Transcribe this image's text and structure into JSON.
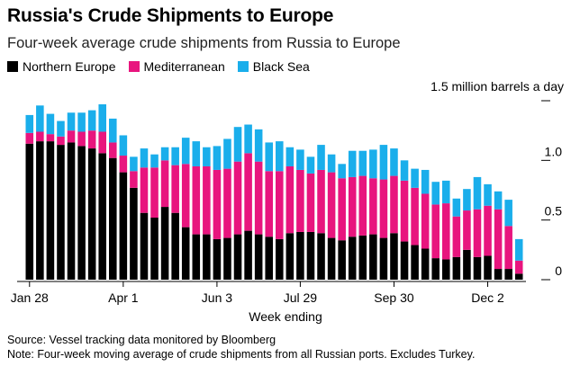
{
  "title": "Russia's Crude Shipments to Europe",
  "subtitle": "Four-week average crude shipments from Russia to Europe",
  "unit_label": "1.5 million barrels a day",
  "x_axis_title": "Week ending",
  "source": "Source: Vessel tracking data monitored by Bloomberg",
  "note": "Note: Four-week moving average of crude shipments from all Russian ports. Excludes Turkey.",
  "colors": {
    "northern_europe": "#000000",
    "mediterranean": "#e8157e",
    "black_sea": "#1aaeeb"
  },
  "chart_data": {
    "type": "bar",
    "stacked": true,
    "xlabel": "Week ending",
    "ylabel": "1.5 million barrels a day",
    "ylim": [
      0,
      1.5
    ],
    "y_ticks": [
      {
        "value": 0,
        "label": "0"
      },
      {
        "value": 0.5,
        "label": "0.5"
      },
      {
        "value": 1.0,
        "label": "1.0"
      },
      {
        "value": 1.5,
        "label": "1.5 million barrels a day"
      }
    ],
    "x_tick_labels": [
      {
        "index": 0,
        "label": "Jan 28"
      },
      {
        "index": 9,
        "label": "Apr 1"
      },
      {
        "index": 18,
        "label": "Jun 3"
      },
      {
        "index": 26,
        "label": "Jul 29"
      },
      {
        "index": 35,
        "label": "Sep 30"
      },
      {
        "index": 44,
        "label": "Dec 2"
      }
    ],
    "grid": false,
    "legend_position": "top-left",
    "series": [
      {
        "name": "Northern Europe",
        "color": "#000000",
        "values": [
          1.14,
          1.16,
          1.16,
          1.13,
          1.15,
          1.12,
          1.1,
          1.06,
          1.02,
          0.9,
          0.77,
          0.56,
          0.52,
          0.61,
          0.56,
          0.44,
          0.38,
          0.38,
          0.34,
          0.35,
          0.38,
          0.41,
          0.38,
          0.36,
          0.34,
          0.39,
          0.4,
          0.4,
          0.39,
          0.35,
          0.33,
          0.36,
          0.37,
          0.38,
          0.35,
          0.39,
          0.32,
          0.29,
          0.26,
          0.18,
          0.17,
          0.19,
          0.25,
          0.19,
          0.2,
          0.09,
          0.09,
          0.05
        ]
      },
      {
        "name": "Mediterranean",
        "color": "#e8157e",
        "values": [
          0.09,
          0.08,
          0.06,
          0.07,
          0.1,
          0.12,
          0.15,
          0.18,
          0.13,
          0.14,
          0.14,
          0.38,
          0.42,
          0.39,
          0.4,
          0.53,
          0.57,
          0.57,
          0.58,
          0.58,
          0.61,
          0.65,
          0.61,
          0.55,
          0.57,
          0.56,
          0.52,
          0.49,
          0.53,
          0.55,
          0.52,
          0.5,
          0.5,
          0.47,
          0.49,
          0.48,
          0.51,
          0.48,
          0.46,
          0.45,
          0.47,
          0.34,
          0.33,
          0.4,
          0.42,
          0.5,
          0.36,
          0.11
        ]
      },
      {
        "name": "Black Sea",
        "color": "#1aaeeb",
        "values": [
          0.15,
          0.22,
          0.17,
          0.13,
          0.15,
          0.16,
          0.17,
          0.23,
          0.2,
          0.17,
          0.12,
          0.16,
          0.11,
          0.11,
          0.15,
          0.22,
          0.21,
          0.16,
          0.2,
          0.25,
          0.29,
          0.24,
          0.27,
          0.24,
          0.25,
          0.16,
          0.17,
          0.14,
          0.21,
          0.15,
          0.12,
          0.22,
          0.21,
          0.24,
          0.29,
          0.23,
          0.17,
          0.16,
          0.2,
          0.19,
          0.19,
          0.15,
          0.18,
          0.27,
          0.18,
          0.15,
          0.22,
          0.18
        ]
      }
    ]
  }
}
